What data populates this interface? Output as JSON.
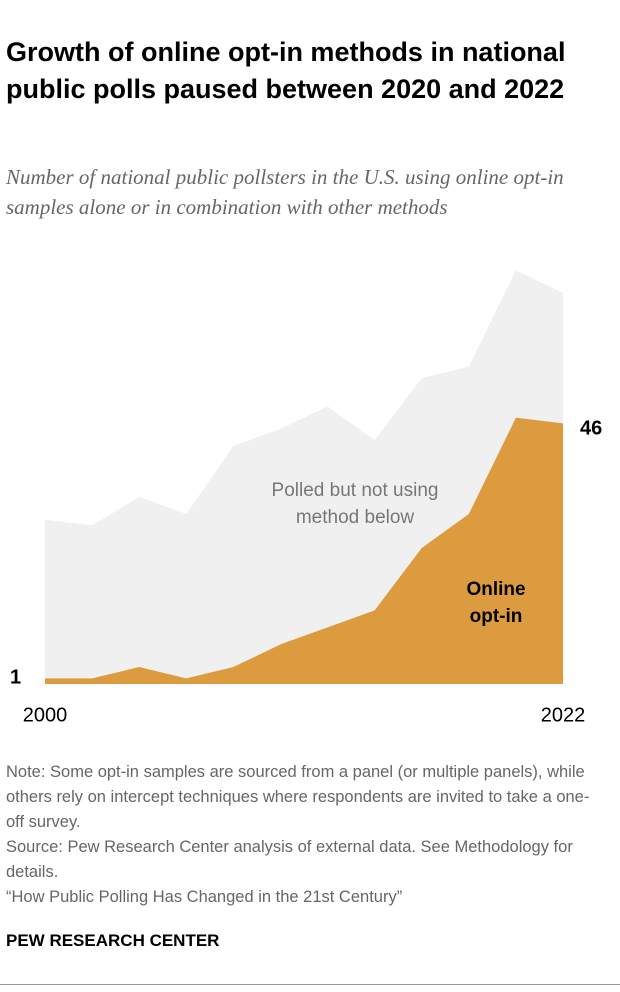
{
  "chart_data": {
    "type": "stacked_area",
    "title": "Growth of online opt-in methods in national public polls paused between 2020 and 2022",
    "subtitle": "Number of national public pollsters in the U.S. using online opt-in samples alone or in combination with other methods",
    "x": [
      2000,
      2002,
      2004,
      2006,
      2008,
      2010,
      2012,
      2014,
      2016,
      2018,
      2020,
      2022
    ],
    "series": [
      {
        "name": "Online opt-in",
        "color": "#dc9b3e",
        "values": [
          1,
          1,
          3,
          1,
          3,
          7,
          10,
          13,
          24,
          30,
          47,
          46
        ]
      },
      {
        "name": "Polled but not using method below",
        "color": "#f0f0f0",
        "values": [
          28,
          27,
          30,
          29,
          39,
          38,
          39,
          30,
          30,
          26,
          26,
          23
        ]
      }
    ],
    "xlim": [
      2000,
      2022
    ],
    "xticks": [
      2000,
      2022
    ],
    "ylim": [
      0,
      75
    ],
    "notes": [
      "Note: Some opt-in samples are sourced from a panel (or multiple panels), while others rely on intercept techniques where respondents are invited to take a one-off survey.",
      "Source: Pew Research Center analysis of external data. See Methodology for details.",
      "“How Public Polling Has Changed in the 21st Century”"
    ],
    "brand": "PEW RESEARCH CENTER"
  }
}
